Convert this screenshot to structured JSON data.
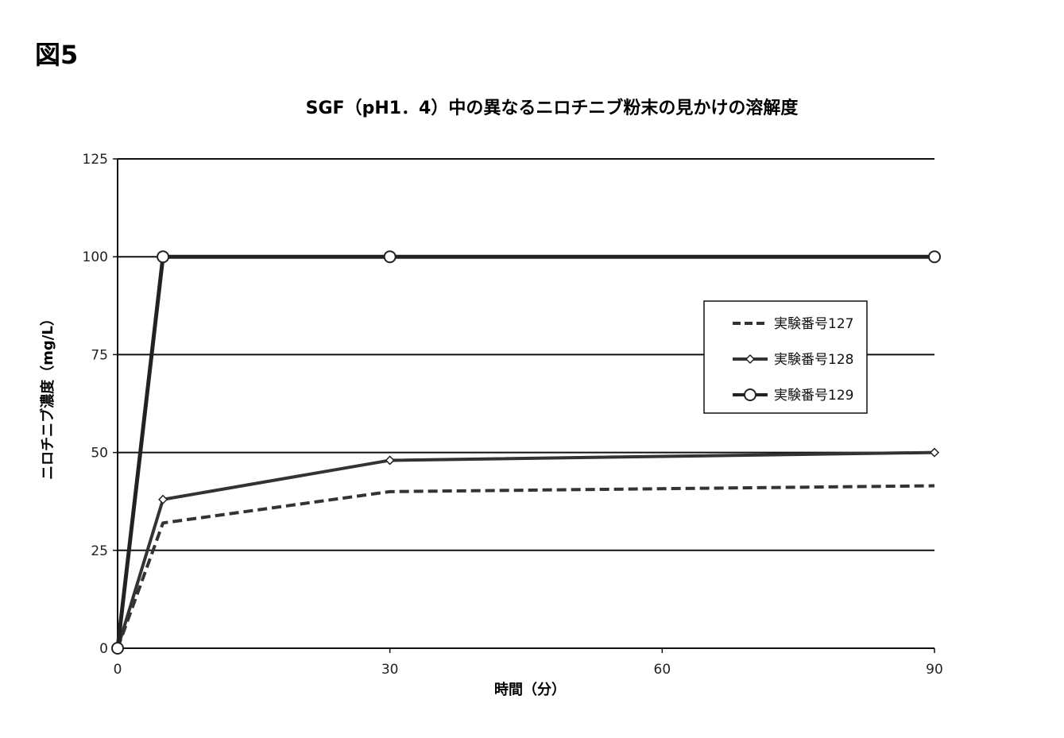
{
  "figure_label": "図5",
  "chart_data": {
    "type": "line",
    "title": "SGF（pH1．4）中の異なるニロチニブ粉末の見かけの溶解度",
    "xlabel": "時間（分）",
    "ylabel": "ニロチニブ濃度（mg/L）",
    "xlim": [
      0,
      90
    ],
    "ylim": [
      0,
      125
    ],
    "xticks": [
      0,
      30,
      60,
      90
    ],
    "yticks": [
      0,
      25,
      50,
      75,
      100,
      125
    ],
    "grid": "horizontal",
    "legend_position": "right",
    "series": [
      {
        "name": "実験番号127",
        "style": "dashed",
        "marker": "none",
        "color": "#333333",
        "x": [
          0,
          5,
          30,
          90
        ],
        "y": [
          0,
          32,
          40,
          41.5
        ]
      },
      {
        "name": "実験番号128",
        "style": "solid",
        "marker": "diamond",
        "color": "#333333",
        "x": [
          0,
          5,
          30,
          90
        ],
        "y": [
          0,
          38,
          48,
          50
        ]
      },
      {
        "name": "実験番号129",
        "style": "solid",
        "marker": "circle",
        "color": "#222222",
        "x": [
          0,
          5,
          30,
          90
        ],
        "y": [
          0,
          100,
          100,
          100
        ]
      }
    ]
  }
}
